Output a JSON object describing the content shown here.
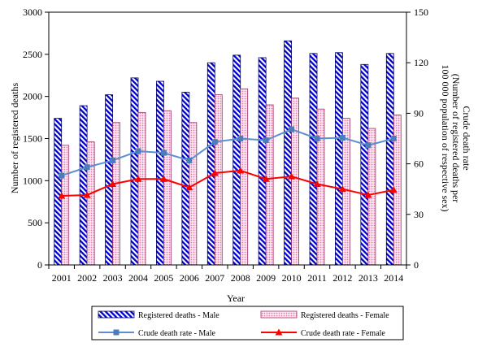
{
  "chart_data": {
    "type": "bar",
    "categories": [
      "2001",
      "2002",
      "2003",
      "2004",
      "2005",
      "2006",
      "2007",
      "2008",
      "2009",
      "2010",
      "2011",
      "2012",
      "2013",
      "2014"
    ],
    "series": [
      {
        "name": "Registered deaths - Male",
        "kind": "bar",
        "axis": "left",
        "pattern": "diagonal-stripes",
        "color": "#0000cc",
        "border_color": "#000066",
        "values": [
          1740,
          1890,
          2020,
          2220,
          2180,
          2050,
          2400,
          2490,
          2460,
          2660,
          2510,
          2520,
          2380,
          2510
        ]
      },
      {
        "name": "Registered deaths - Female",
        "kind": "bar",
        "axis": "left",
        "pattern": "dots",
        "color": "#e27aae",
        "border_color": "#993366",
        "values": [
          1420,
          1460,
          1690,
          1810,
          1830,
          1690,
          2020,
          2090,
          1900,
          1980,
          1850,
          1740,
          1620,
          1780
        ]
      },
      {
        "name": "Crude death rate - Male",
        "kind": "line",
        "axis": "right",
        "marker": "square",
        "color": "#5b8fd0",
        "values": [
          53,
          58,
          62,
          67.5,
          66.5,
          62,
          73,
          75,
          74,
          80.5,
          75,
          75.5,
          71,
          75
        ]
      },
      {
        "name": "Crude death rate - Female",
        "kind": "line",
        "axis": "right",
        "marker": "triangle",
        "color": "#ff0000",
        "values": [
          41,
          41.5,
          48,
          51,
          51,
          46,
          54.5,
          56,
          51,
          52.5,
          48,
          45,
          41.5,
          44.5
        ]
      }
    ],
    "xlabel": "Year",
    "ylabel": "Number of registered deaths",
    "y2label": [
      "Crude death rate",
      "(Number of registered deaths per",
      "100 000 population of respective sex)"
    ],
    "ylim": [
      0,
      3000
    ],
    "y2lim": [
      0,
      150
    ],
    "yticks": [
      0,
      500,
      1000,
      1500,
      2000,
      2500,
      3000
    ],
    "y2ticks": [
      0,
      30,
      60,
      90,
      120,
      150
    ],
    "grid": false,
    "legend": "bottom"
  }
}
